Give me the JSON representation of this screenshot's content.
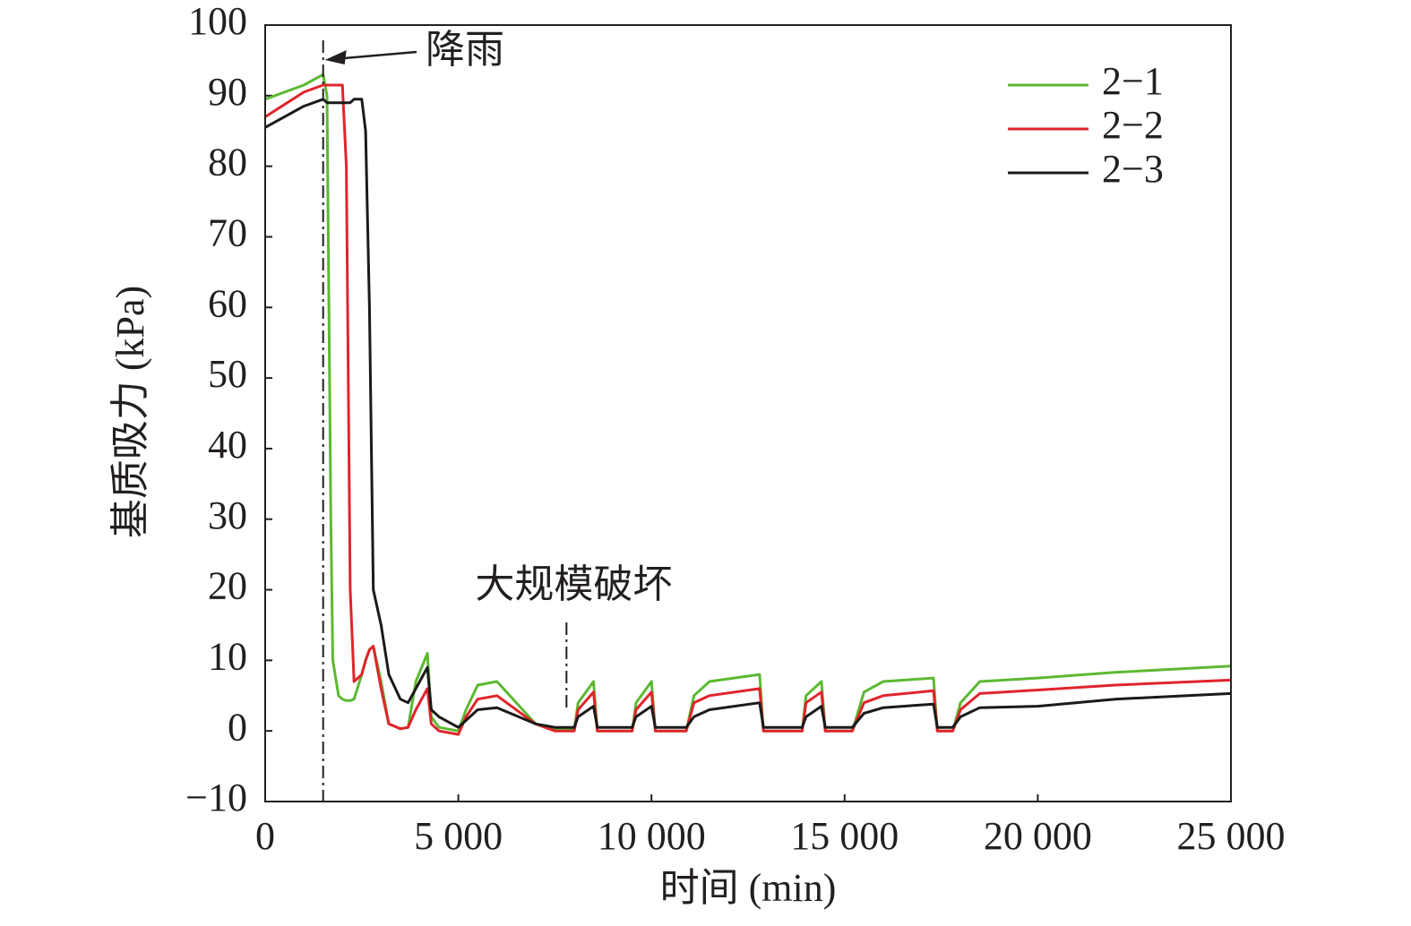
{
  "chart_data": {
    "type": "line",
    "xlabel": "时间 (min)",
    "ylabel": "基质吸力 (kPa)",
    "x": [
      0,
      1000,
      1500,
      1600,
      1700,
      1750,
      1900,
      2000,
      2100,
      2200,
      2300,
      2500,
      2600,
      2700,
      2800,
      3000,
      3200,
      3500,
      3700,
      3900,
      4200,
      4300,
      4500,
      5000,
      5200,
      5500,
      6000,
      7000,
      7500,
      8000,
      8100,
      8500,
      8600,
      9000,
      9500,
      9600,
      10000,
      10100,
      10500,
      10900,
      11100,
      11500,
      12800,
      12900,
      13500,
      13900,
      14000,
      14400,
      14500,
      15000,
      15200,
      15500,
      16000,
      17300,
      17400,
      17800,
      18000,
      18500,
      20000,
      22000,
      25000
    ],
    "series": [
      {
        "name": "2−1",
        "color": "#5cb932",
        "values": [
          89.5,
          91.5,
          93,
          90,
          30,
          10,
          5,
          4.5,
          4.3,
          4.3,
          4.5,
          8,
          10,
          11.5,
          12,
          7,
          1,
          0.3,
          0.5,
          7,
          11,
          2,
          0.5,
          0,
          3,
          6.5,
          7,
          1,
          0.2,
          0.2,
          4,
          7,
          0,
          0,
          0,
          4,
          7,
          0,
          0,
          0,
          5,
          7,
          8,
          0,
          0,
          0,
          5,
          7,
          0,
          0,
          0,
          5.5,
          7,
          7.5,
          0,
          0,
          4,
          7,
          7.5,
          8.3,
          9.2
        ]
      },
      {
        "name": "2−2",
        "color": "#e0242b",
        "values": [
          87,
          90.5,
          91.5,
          91.5,
          91.5,
          91.5,
          91.5,
          91.5,
          80,
          20,
          7,
          8,
          10,
          11.5,
          12,
          6,
          1,
          0.3,
          0.5,
          3,
          6,
          1,
          0,
          -0.5,
          2,
          4.5,
          5,
          1,
          0,
          0,
          3,
          5.5,
          0,
          0,
          0,
          3,
          5.5,
          0,
          0,
          0,
          4,
          5,
          6,
          0,
          0,
          0,
          4,
          5.5,
          0,
          0,
          0,
          4,
          5,
          5.7,
          0,
          0,
          3,
          5.3,
          5.8,
          6.5,
          7.2
        ]
      },
      {
        "name": "2−3",
        "color": "#1a1a1a",
        "values": [
          85.5,
          88.5,
          89.5,
          89,
          89,
          89,
          89,
          89,
          89,
          89,
          89.5,
          89.5,
          85,
          60,
          20,
          15,
          8,
          4.5,
          4,
          6,
          9,
          3,
          2,
          0.5,
          1.5,
          3,
          3.3,
          1,
          0.5,
          0.5,
          2,
          3.5,
          0.5,
          0.5,
          0.5,
          2,
          3.5,
          0.5,
          0.5,
          0.5,
          2,
          3,
          4,
          0.5,
          0.5,
          0.5,
          2,
          3.5,
          0.5,
          0.5,
          0.5,
          2.5,
          3.3,
          3.8,
          0.5,
          0.5,
          2,
          3.3,
          3.5,
          4.5,
          5.3
        ]
      }
    ],
    "xlim": [
      0,
      25000
    ],
    "xticks": [
      0,
      {
        "value": 5000,
        "label": "5 000"
      },
      {
        "value": 10000,
        "label": "10 000"
      },
      {
        "value": 15000,
        "label": "15 000"
      },
      {
        "value": 20000,
        "label": "20 000"
      },
      {
        "value": 25000,
        "label": "25 000"
      }
    ],
    "ylim": [
      -10,
      100
    ],
    "yticks": [
      {
        "value": -10,
        "label": "−10"
      },
      0,
      10,
      20,
      30,
      40,
      50,
      60,
      70,
      80,
      90,
      100
    ],
    "legend": "upper right",
    "annotations": [
      {
        "text": "降雨",
        "x": 1500
      },
      {
        "text": "大规模破坏",
        "x": 7800
      }
    ]
  }
}
